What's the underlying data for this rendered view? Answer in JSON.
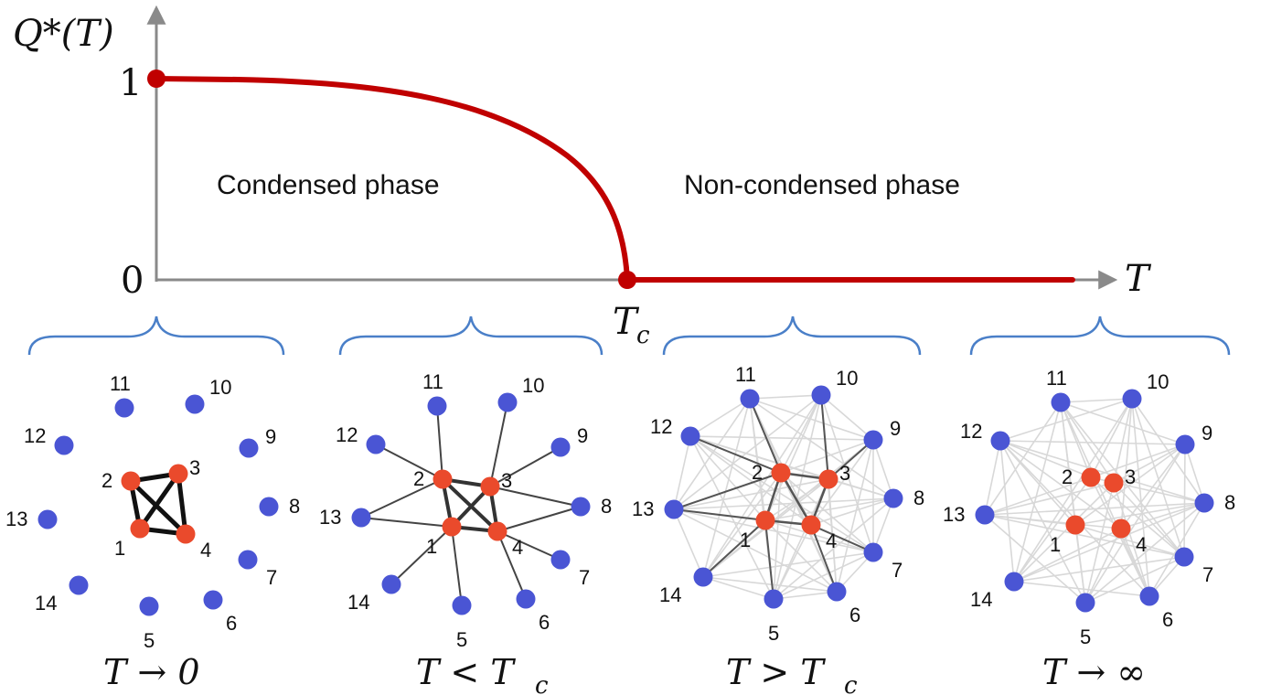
{
  "phase_plot": {
    "y_axis_label": "Q*(T)",
    "x_axis_label": "T",
    "y_tick_1": "1",
    "y_tick_0": "0",
    "critical_label": "T",
    "critical_sub": "c",
    "left_region_label": "Condensed phase",
    "right_region_label": "Non-condensed phase",
    "curve_color": "#c00000",
    "axis_color": "#8a8a8a"
  },
  "networks": {
    "core_color": "#ea4a2c",
    "periphery_color": "#4a55d4",
    "brace_color": "#4a7fc8",
    "core_nodes": [
      "1",
      "2",
      "3",
      "4"
    ],
    "periphery_nodes": [
      "5",
      "6",
      "7",
      "8",
      "9",
      "10",
      "11",
      "12",
      "13",
      "14"
    ],
    "panels": [
      {
        "caption_main": "T → 0",
        "caption_sub": ""
      },
      {
        "caption_main": "T < T",
        "caption_sub": "c"
      },
      {
        "caption_main": "T > T",
        "caption_sub": "c"
      },
      {
        "caption_main": "T → ∞",
        "caption_sub": ""
      }
    ]
  }
}
